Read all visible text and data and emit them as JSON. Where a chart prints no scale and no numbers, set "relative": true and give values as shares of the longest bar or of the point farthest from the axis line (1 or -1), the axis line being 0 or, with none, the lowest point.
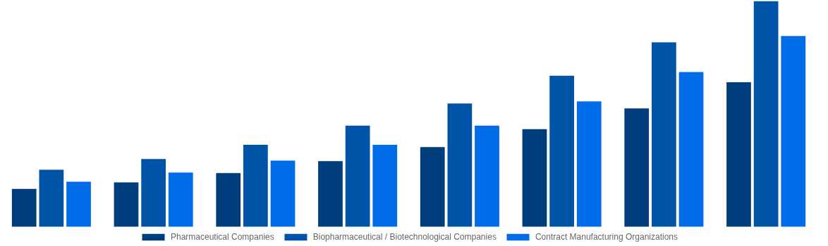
{
  "chart_data": {
    "type": "bar",
    "relative": true,
    "categories": [
      null,
      null,
      null,
      null,
      null,
      null,
      null,
      null
    ],
    "series": [
      {
        "name": "Pharmaceutical Companies",
        "color": "#003d7c",
        "values": [
          0.167,
          0.196,
          0.237,
          0.29,
          0.353,
          0.432,
          0.524,
          0.64
        ]
      },
      {
        "name": "Biopharmaceutical / Biotechnological Companies",
        "color": "#0054a8",
        "values": [
          0.252,
          0.3,
          0.363,
          0.448,
          0.546,
          0.669,
          0.817,
          1
        ]
      },
      {
        "name": "Contract Manufacturing Organizations",
        "color": "#006ce8",
        "values": [
          0.199,
          0.24,
          0.293,
          0.363,
          0.448,
          0.555,
          0.685,
          0.845
        ]
      }
    ],
    "legend": "bottom"
  }
}
